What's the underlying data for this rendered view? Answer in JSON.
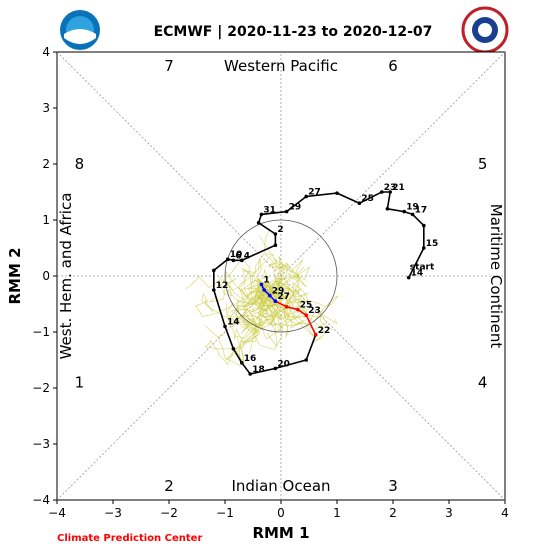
{
  "title": "ECMWF | 2020-11-23 to 2020-12-07",
  "credit": "Climate Prediction Center",
  "logos": {
    "left": "NOAA",
    "right": "NATIONAL WEATHER SERVICE"
  },
  "chart_data": {
    "type": "line",
    "xlabel": "RMM 1",
    "ylabel": "RMM 2",
    "xlim": [
      -4,
      4
    ],
    "ylim": [
      -4,
      4
    ],
    "xticks": [
      "−4",
      "−3",
      "−2",
      "−1",
      "0",
      "1",
      "2",
      "3",
      "4"
    ],
    "yticks": [
      "−4",
      "−3",
      "−2",
      "−1",
      "0",
      "1",
      "2",
      "3",
      "4"
    ],
    "grid": false,
    "phases": [
      {
        "label": "1",
        "x": -3.6,
        "y": -1.9
      },
      {
        "label": "2",
        "x": -2.0,
        "y": -3.75
      },
      {
        "label": "3",
        "x": 2.0,
        "y": -3.75
      },
      {
        "label": "4",
        "x": 3.6,
        "y": -1.9
      },
      {
        "label": "5",
        "x": 3.6,
        "y": 2.0
      },
      {
        "label": "6",
        "x": 2.0,
        "y": 3.75
      },
      {
        "label": "7",
        "x": -2.0,
        "y": 3.75
      },
      {
        "label": "8",
        "x": -3.6,
        "y": 2.0
      }
    ],
    "regions": {
      "top": "Western Pacific",
      "bottom": "Indian Ocean",
      "left": "West. Hem. and Africa",
      "right": "Maritime Continent"
    },
    "observed": {
      "color": "#000000",
      "points": [
        {
          "x": 2.28,
          "y": -0.03,
          "label": "14"
        },
        {
          "x": 2.55,
          "y": 0.5,
          "label": "15"
        },
        {
          "x": 2.55,
          "y": 0.9,
          "label": ""
        },
        {
          "x": 2.35,
          "y": 1.1,
          "label": "17"
        },
        {
          "x": 2.2,
          "y": 1.15,
          "label": "19"
        },
        {
          "x": 1.9,
          "y": 1.2,
          "label": ""
        },
        {
          "x": 1.95,
          "y": 1.5,
          "label": "21"
        },
        {
          "x": 1.8,
          "y": 1.5,
          "label": "23"
        },
        {
          "x": 1.4,
          "y": 1.3,
          "label": "25"
        },
        {
          "x": 1.0,
          "y": 1.48,
          "label": ""
        },
        {
          "x": 0.45,
          "y": 1.42,
          "label": "27"
        },
        {
          "x": 0.1,
          "y": 1.15,
          "label": "29"
        },
        {
          "x": -0.35,
          "y": 1.1,
          "label": "31"
        },
        {
          "x": -0.4,
          "y": 0.95,
          "label": ""
        },
        {
          "x": -0.1,
          "y": 0.75,
          "label": "2"
        },
        {
          "x": -0.1,
          "y": 0.55,
          "label": ""
        },
        {
          "x": -0.7,
          "y": 0.28,
          "label": "4"
        },
        {
          "x": -0.85,
          "y": 0.28,
          "label": "6"
        },
        {
          "x": -0.95,
          "y": 0.3,
          "label": "10"
        },
        {
          "x": -1.2,
          "y": 0.1,
          "label": ""
        },
        {
          "x": -1.2,
          "y": -0.25,
          "label": "12"
        },
        {
          "x": -1.0,
          "y": -0.9,
          "label": "14"
        },
        {
          "x": -0.85,
          "y": -1.3,
          "label": ""
        },
        {
          "x": -0.7,
          "y": -1.55,
          "label": "16"
        },
        {
          "x": -0.55,
          "y": -1.75,
          "label": "18"
        },
        {
          "x": -0.1,
          "y": -1.65,
          "label": "20"
        },
        {
          "x": 0.45,
          "y": -1.5,
          "label": ""
        },
        {
          "x": 0.62,
          "y": -1.05,
          "label": "22"
        }
      ]
    },
    "forecast_start_label": "start",
    "forecast_start": {
      "x": 2.3,
      "y": 0.12
    },
    "forecast_red": {
      "color": "#ff0000",
      "points": [
        {
          "x": 0.62,
          "y": -1.05,
          "label": ""
        },
        {
          "x": 0.45,
          "y": -0.7,
          "label": "23"
        },
        {
          "x": 0.3,
          "y": -0.6,
          "label": "25"
        },
        {
          "x": 0.1,
          "y": -0.55,
          "label": ""
        },
        {
          "x": -0.1,
          "y": -0.45,
          "label": "27"
        }
      ]
    },
    "forecast_blue": {
      "color": "#0000ff",
      "points": [
        {
          "x": -0.1,
          "y": -0.45,
          "label": ""
        },
        {
          "x": -0.2,
          "y": -0.35,
          "label": "29"
        },
        {
          "x": -0.3,
          "y": -0.25,
          "label": ""
        },
        {
          "x": -0.35,
          "y": -0.15,
          "label": "1"
        }
      ]
    },
    "ensemble_color": "#cccc44",
    "unit_circle_radius": 1
  }
}
